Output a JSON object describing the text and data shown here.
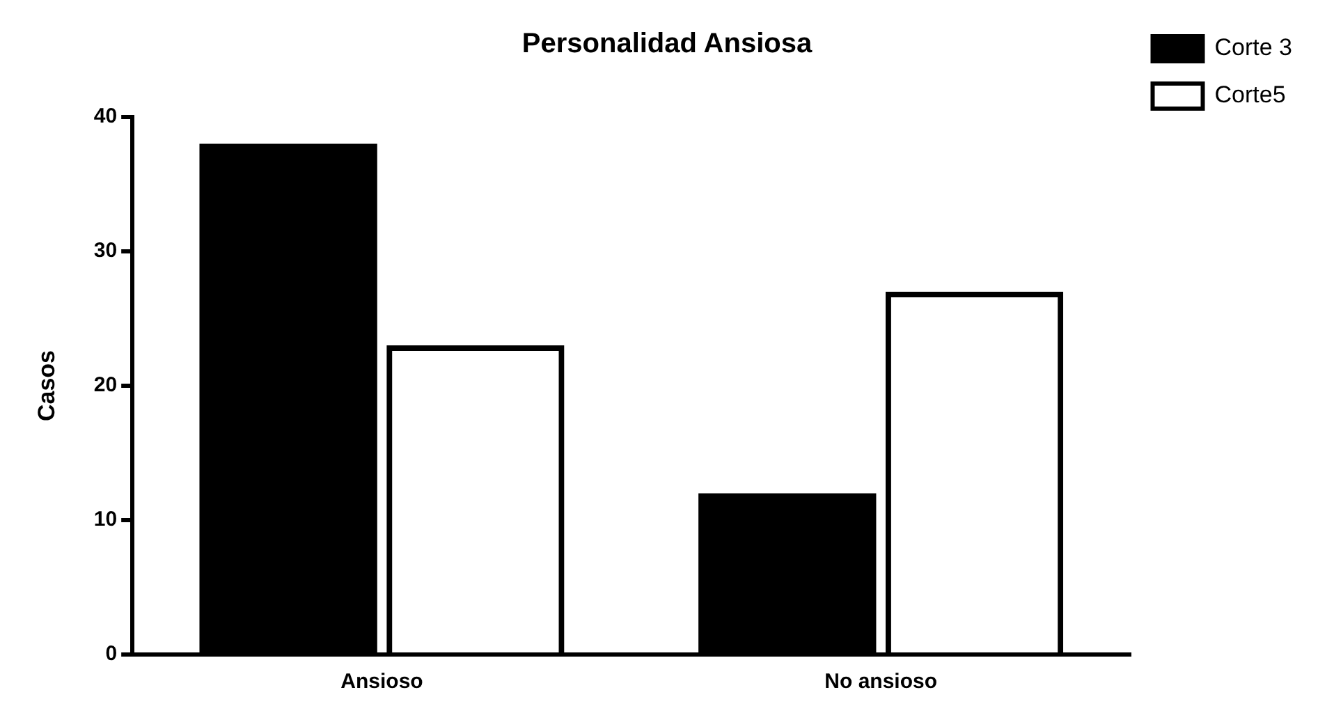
{
  "chart_data": {
    "type": "bar",
    "title": "Personalidad Ansiosa",
    "ylabel": "Casos",
    "categories": [
      "Ansioso",
      "No ansioso"
    ],
    "series": [
      {
        "name": "Corte 3",
        "color": "#000000",
        "values": [
          38,
          12
        ]
      },
      {
        "name": "Corte5",
        "color": "#000000",
        "values": [
          23,
          27
        ]
      }
    ],
    "ylim": [
      0,
      40
    ],
    "yticks": [
      0,
      10,
      20,
      30,
      40
    ],
    "grid": false,
    "legend": "top right"
  }
}
